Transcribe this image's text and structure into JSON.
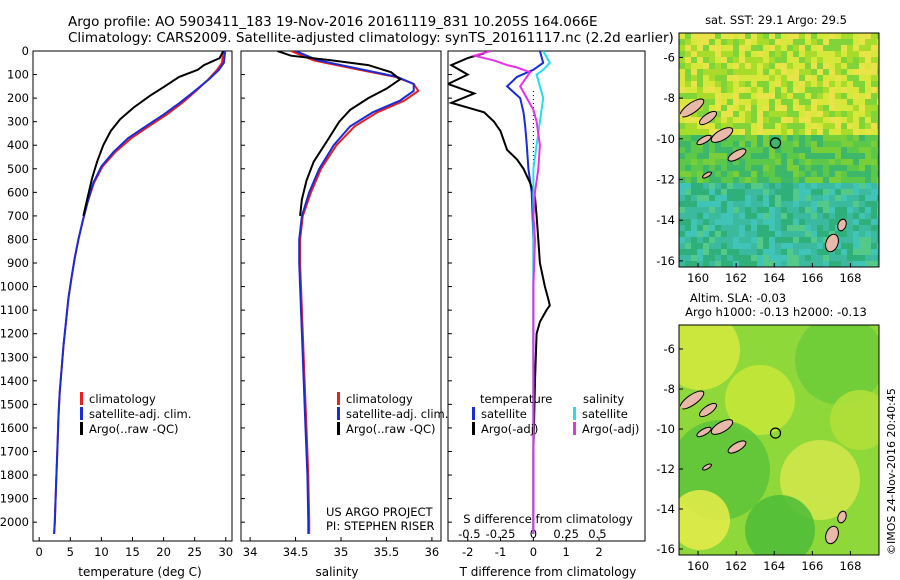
{
  "header": {
    "line1": "Argo profile: AO 5903411_183 19-Nov-2016 20161119_831 10.205S 164.066E",
    "line2": "Climatology: CARS2009. Satellite-adjusted climatology: synTS_20161117.nc (2.2d earlier)"
  },
  "colors": {
    "climatology": "#e8201e",
    "satellite": "#1a2bd8",
    "argo": "#000000",
    "sat_s": "#22e0e8",
    "argo_s": "#e830e8"
  },
  "credit": "©IMOS 24-Nov-2016 20:40:45",
  "chart_data": [
    {
      "type": "line",
      "xlabel": "temperature (deg C)",
      "ylabel": "",
      "xlim": [
        -1,
        31
      ],
      "ylim": [
        2080,
        0
      ],
      "xticks": [
        0,
        5,
        10,
        15,
        20,
        25,
        30
      ],
      "yticks": [
        0,
        100,
        200,
        300,
        400,
        500,
        600,
        700,
        800,
        900,
        1000,
        1100,
        1200,
        1300,
        1400,
        1500,
        1600,
        1700,
        1800,
        1900,
        2000
      ],
      "legend": [
        "climatology",
        "satellite-adj. clim.",
        "Argo(..raw -QC)"
      ],
      "series": [
        {
          "name": "climatology",
          "color": "#e8201e",
          "pts": [
            [
              29.6,
              0
            ],
            [
              29.4,
              50
            ],
            [
              28.6,
              80
            ],
            [
              27.2,
              120
            ],
            [
              25.2,
              170
            ],
            [
              23.0,
              220
            ],
            [
              20.5,
              270
            ],
            [
              17.6,
              320
            ],
            [
              14.8,
              370
            ],
            [
              12.2,
              430
            ],
            [
              10.2,
              490
            ],
            [
              8.8,
              560
            ],
            [
              7.8,
              640
            ],
            [
              7.0,
              720
            ],
            [
              6.3,
              800
            ],
            [
              5.7,
              880
            ],
            [
              5.2,
              960
            ],
            [
              4.7,
              1050
            ],
            [
              4.3,
              1150
            ],
            [
              3.9,
              1250
            ],
            [
              3.6,
              1350
            ],
            [
              3.3,
              1450
            ],
            [
              3.1,
              1550
            ],
            [
              2.9,
              1700
            ],
            [
              2.7,
              1850
            ],
            [
              2.5,
              2000
            ],
            [
              2.4,
              2050
            ]
          ]
        },
        {
          "name": "satellite-adj. clim.",
          "color": "#1a2bd8",
          "pts": [
            [
              29.9,
              0
            ],
            [
              29.7,
              50
            ],
            [
              28.9,
              80
            ],
            [
              27.3,
              120
            ],
            [
              25.0,
              170
            ],
            [
              22.6,
              220
            ],
            [
              20.0,
              270
            ],
            [
              17.1,
              320
            ],
            [
              14.3,
              370
            ],
            [
              11.9,
              430
            ],
            [
              10.0,
              490
            ],
            [
              8.7,
              560
            ],
            [
              7.8,
              640
            ],
            [
              7.0,
              720
            ],
            [
              6.3,
              800
            ],
            [
              5.7,
              880
            ],
            [
              5.2,
              960
            ],
            [
              4.7,
              1050
            ],
            [
              4.3,
              1150
            ],
            [
              3.9,
              1250
            ],
            [
              3.6,
              1350
            ],
            [
              3.3,
              1450
            ],
            [
              3.1,
              1550
            ],
            [
              2.9,
              1700
            ],
            [
              2.7,
              1850
            ],
            [
              2.5,
              2000
            ],
            [
              2.4,
              2050
            ]
          ]
        },
        {
          "name": "Argo(..raw -QC)",
          "color": "#000000",
          "pts": [
            [
              29.6,
              0
            ],
            [
              29.0,
              30
            ],
            [
              26.5,
              60
            ],
            [
              25.5,
              80
            ],
            [
              22.5,
              110
            ],
            [
              20.2,
              150
            ],
            [
              17.8,
              190
            ],
            [
              15.2,
              240
            ],
            [
              13.0,
              290
            ],
            [
              11.5,
              340
            ],
            [
              10.3,
              400
            ],
            [
              9.3,
              470
            ],
            [
              8.5,
              540
            ],
            [
              7.8,
              620
            ],
            [
              7.1,
              700
            ]
          ]
        }
      ]
    },
    {
      "type": "line",
      "xlabel": "salinity",
      "ylabel": "",
      "xlim": [
        33.9,
        36.1
      ],
      "ylim": [
        2080,
        0
      ],
      "xticks": [
        34,
        34.5,
        35,
        35.5,
        36
      ],
      "legend": [
        "climatology",
        "satellite-adj. clim.",
        "Argo(..raw -QC)"
      ],
      "annotations": [
        "US ARGO PROJECT",
        "PI: STEPHEN RISER"
      ],
      "series": [
        {
          "name": "climatology",
          "color": "#e8201e",
          "pts": [
            [
              34.45,
              0
            ],
            [
              34.7,
              40
            ],
            [
              35.2,
              80
            ],
            [
              35.6,
              110
            ],
            [
              35.8,
              140
            ],
            [
              35.85,
              170
            ],
            [
              35.7,
              210
            ],
            [
              35.4,
              260
            ],
            [
              35.15,
              320
            ],
            [
              34.95,
              400
            ],
            [
              34.78,
              500
            ],
            [
              34.67,
              600
            ],
            [
              34.58,
              700
            ],
            [
              34.55,
              800
            ],
            [
              34.55,
              900
            ],
            [
              34.56,
              1000
            ],
            [
              34.57,
              1100
            ],
            [
              34.58,
              1200
            ],
            [
              34.6,
              1400
            ],
            [
              34.62,
              1600
            ],
            [
              34.64,
              1800
            ],
            [
              34.65,
              2000
            ],
            [
              34.65,
              2050
            ]
          ]
        },
        {
          "name": "satellite-adj. clim.",
          "color": "#1a2bd8",
          "pts": [
            [
              34.5,
              0
            ],
            [
              34.75,
              40
            ],
            [
              35.25,
              80
            ],
            [
              35.62,
              110
            ],
            [
              35.8,
              140
            ],
            [
              35.8,
              170
            ],
            [
              35.65,
              210
            ],
            [
              35.35,
              260
            ],
            [
              35.1,
              320
            ],
            [
              34.92,
              400
            ],
            [
              34.76,
              500
            ],
            [
              34.65,
              600
            ],
            [
              34.57,
              700
            ],
            [
              34.54,
              800
            ],
            [
              34.54,
              900
            ],
            [
              34.55,
              1000
            ],
            [
              34.56,
              1100
            ],
            [
              34.57,
              1200
            ],
            [
              34.59,
              1400
            ],
            [
              34.61,
              1600
            ],
            [
              34.63,
              1800
            ],
            [
              34.64,
              2000
            ],
            [
              34.64,
              2050
            ]
          ]
        },
        {
          "name": "Argo(..raw -QC)",
          "color": "#000000",
          "pts": [
            [
              34.3,
              0
            ],
            [
              34.45,
              20
            ],
            [
              34.9,
              40
            ],
            [
              35.3,
              60
            ],
            [
              35.55,
              90
            ],
            [
              35.65,
              120
            ],
            [
              35.5,
              160
            ],
            [
              35.3,
              200
            ],
            [
              35.1,
              250
            ],
            [
              34.98,
              300
            ],
            [
              34.85,
              380
            ],
            [
              34.7,
              470
            ],
            [
              34.62,
              550
            ],
            [
              34.57,
              630
            ],
            [
              34.55,
              700
            ]
          ]
        }
      ]
    },
    {
      "type": "line",
      "xlabel": "T difference from climatology",
      "ylabel": "",
      "xlim": [
        -2.6,
        3.4
      ],
      "ylim": [
        2080,
        0
      ],
      "xticks": [
        -2,
        -1,
        0,
        1,
        2
      ],
      "x2label": "S difference from climatology",
      "x2ticks": [
        "-0.5",
        "-0.25",
        "0",
        "0.25",
        "0.5"
      ],
      "legend": [
        [
          "temperature",
          "satellite",
          "Argo(-adj)"
        ],
        [
          "salinity",
          "satellite",
          "Argo(-adj)"
        ]
      ],
      "series": [
        {
          "name": "T satellite",
          "color": "#1a2bd8",
          "pts": [
            [
              0.2,
              0
            ],
            [
              0.3,
              50
            ],
            [
              0.0,
              80
            ],
            [
              -0.5,
              110
            ],
            [
              -0.8,
              150
            ],
            [
              -0.4,
              200
            ],
            [
              -0.3,
              260
            ],
            [
              -0.25,
              320
            ],
            [
              -0.2,
              400
            ],
            [
              -0.15,
              500
            ],
            [
              -0.05,
              600
            ],
            [
              0,
              800
            ],
            [
              0,
              1200
            ],
            [
              0,
              2000
            ],
            [
              0,
              2050
            ]
          ]
        },
        {
          "name": "T Argo(-adj)",
          "color": "#000000",
          "pts": [
            [
              -1.5,
              10
            ],
            [
              -2.0,
              30
            ],
            [
              -2.5,
              60
            ],
            [
              -2.0,
              100
            ],
            [
              -2.6,
              140
            ],
            [
              -1.8,
              180
            ],
            [
              -2.5,
              220
            ],
            [
              -1.5,
              260
            ],
            [
              -1.2,
              300
            ],
            [
              -1.0,
              340
            ],
            [
              -0.9,
              380
            ],
            [
              -0.8,
              420
            ],
            [
              -0.5,
              460
            ],
            [
              -0.3,
              500
            ],
            [
              -0.1,
              560
            ],
            [
              0.05,
              620
            ],
            [
              0.1,
              700
            ],
            [
              0.15,
              800
            ],
            [
              0.2,
              900
            ],
            [
              0.35,
              1000
            ],
            [
              0.45,
              1050
            ],
            [
              0.5,
              1080
            ],
            [
              0.4,
              1100
            ],
            [
              0.2,
              1150
            ],
            [
              0.1,
              1200
            ],
            [
              0.05,
              1400
            ],
            [
              0,
              1700
            ],
            [
              0,
              2050
            ]
          ]
        },
        {
          "name": "S satellite",
          "color": "#22e0e8",
          "pts": [
            [
              0.3,
              0
            ],
            [
              0.5,
              50
            ],
            [
              0.3,
              80
            ],
            [
              0.1,
              100
            ],
            [
              0.2,
              150
            ],
            [
              0.3,
              200
            ],
            [
              0.2,
              300
            ],
            [
              0.1,
              400
            ],
            [
              0.0,
              500
            ],
            [
              0.0,
              600
            ],
            [
              0.0,
              700
            ],
            [
              0.0,
              800
            ],
            [
              0,
              1200
            ],
            [
              0,
              2000
            ],
            [
              0,
              2050
            ]
          ]
        },
        {
          "name": "S Argo(-adj)",
          "color": "#e830e8",
          "pts": [
            [
              -1.3,
              0
            ],
            [
              -1.8,
              20
            ],
            [
              -1.2,
              40
            ],
            [
              -0.8,
              60
            ],
            [
              -0.5,
              70
            ],
            [
              -0.1,
              90
            ],
            [
              -0.2,
              110
            ],
            [
              -0.4,
              150
            ],
            [
              -0.2,
              200
            ],
            [
              0.0,
              250
            ],
            [
              0.1,
              300
            ],
            [
              0.2,
              400
            ],
            [
              0.15,
              500
            ],
            [
              0.05,
              600
            ],
            [
              0.0,
              700
            ],
            [
              0.05,
              800
            ],
            [
              0,
              1000
            ],
            [
              0,
              2050
            ]
          ]
        }
      ]
    }
  ],
  "maps": [
    {
      "title": "sat. SST: 29.1  Argo: 29.5",
      "title2": "",
      "xticks": [
        "160",
        "162",
        "164",
        "166",
        "168"
      ],
      "yticks": [
        "-6",
        "-8",
        "-10",
        "-12",
        "-14",
        "-16"
      ],
      "lon": [
        159,
        169.5
      ],
      "lat": [
        -16.3,
        -4.8
      ],
      "argo": [
        164.066,
        -10.205
      ]
    },
    {
      "title": "Altim. SLA: -0.03",
      "title2": "Argo h1000: -0.13  h2000: -0.13",
      "xticks": [
        "160",
        "162",
        "164",
        "166",
        "168"
      ],
      "yticks": [
        "-6",
        "-8",
        "-10",
        "-12",
        "-14",
        "-16"
      ],
      "lon": [
        159,
        169.5
      ],
      "lat": [
        -16.3,
        -4.8
      ],
      "argo": [
        164.066,
        -10.205
      ]
    }
  ]
}
